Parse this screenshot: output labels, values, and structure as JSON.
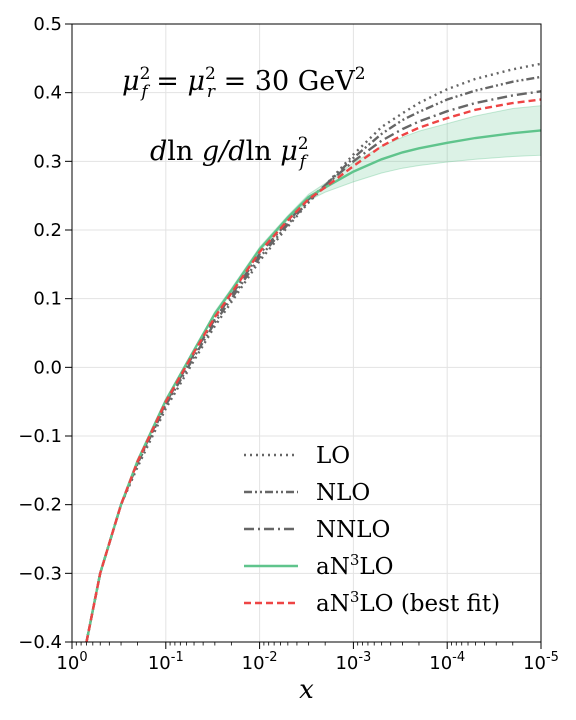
{
  "chart_data": {
    "type": "line",
    "xlabel": "x",
    "ylabel": "",
    "x_scale": "log",
    "x_reversed": true,
    "xlim": [
      1,
      1e-05
    ],
    "ylim": [
      -0.4,
      0.5
    ],
    "grid": true,
    "x_ticks": [
      {
        "value": 1,
        "base": "10",
        "exp": "0"
      },
      {
        "value": 0.1,
        "base": "10",
        "exp": "-1"
      },
      {
        "value": 0.01,
        "base": "10",
        "exp": "-2"
      },
      {
        "value": 0.001,
        "base": "10",
        "exp": "-3"
      },
      {
        "value": 0.0001,
        "base": "10",
        "exp": "-4"
      },
      {
        "value": 1e-05,
        "base": "10",
        "exp": "-5"
      }
    ],
    "y_ticks": [
      {
        "value": 0.5,
        "label": "0.5"
      },
      {
        "value": 0.4,
        "label": "0.4"
      },
      {
        "value": 0.3,
        "label": "0.3"
      },
      {
        "value": 0.2,
        "label": "0.2"
      },
      {
        "value": 0.1,
        "label": "0.1"
      },
      {
        "value": 0.0,
        "label": "0.0"
      },
      {
        "value": -0.1,
        "label": "−0.1"
      },
      {
        "value": -0.2,
        "label": "−0.2"
      },
      {
        "value": -0.3,
        "label": "−0.3"
      },
      {
        "value": -0.4,
        "label": "−0.4"
      }
    ],
    "annotations": [
      {
        "id": "scale",
        "parts": [
          {
            "t": "μ",
            "it": true
          },
          {
            "t": "2",
            "sup": true
          },
          {
            "t": "f",
            "sub": true,
            "it": true
          },
          {
            "t": " = "
          },
          {
            "t": "μ",
            "it": true
          },
          {
            "t": "2",
            "sup": true
          },
          {
            "t": "r",
            "sub": true,
            "it": true
          },
          {
            "t": " = 30 GeV"
          },
          {
            "t": "2",
            "sup": true
          }
        ]
      },
      {
        "id": "quantity",
        "parts": [
          {
            "t": "d",
            "it": true
          },
          {
            "t": "ln "
          },
          {
            "t": "g/d",
            "it": true
          },
          {
            "t": "ln "
          },
          {
            "t": "μ",
            "it": true
          },
          {
            "t": "2",
            "sup": true
          },
          {
            "t": "f",
            "sub": true,
            "it": true
          }
        ]
      }
    ],
    "legend": {
      "placement": "lower-right"
    },
    "series": [
      {
        "name": "LO",
        "color": "#666666",
        "dash": "dotted",
        "x": [
          0.7,
          0.5,
          0.3,
          0.2,
          0.1,
          0.05,
          0.03,
          0.02,
          0.01,
          0.005,
          0.003,
          0.002,
          0.001,
          0.0005,
          0.0003,
          0.0002,
          0.0001,
          5e-05,
          2e-05,
          1e-05
        ],
        "y": [
          -0.4,
          -0.3,
          -0.2,
          -0.145,
          -0.06,
          0.01,
          0.06,
          0.095,
          0.155,
          0.205,
          0.24,
          0.265,
          0.31,
          0.35,
          0.37,
          0.385,
          0.405,
          0.42,
          0.434,
          0.442
        ]
      },
      {
        "name": "NLO",
        "color": "#666666",
        "dash": "dashdotdot",
        "x": [
          0.7,
          0.5,
          0.3,
          0.2,
          0.1,
          0.05,
          0.03,
          0.02,
          0.01,
          0.005,
          0.003,
          0.002,
          0.001,
          0.0005,
          0.0003,
          0.0002,
          0.0001,
          5e-05,
          2e-05,
          1e-05
        ],
        "y": [
          -0.4,
          -0.3,
          -0.2,
          -0.14,
          -0.055,
          0.015,
          0.065,
          0.1,
          0.16,
          0.208,
          0.242,
          0.265,
          0.305,
          0.34,
          0.36,
          0.372,
          0.39,
          0.403,
          0.416,
          0.423
        ]
      },
      {
        "name": "NNLO",
        "color": "#666666",
        "dash": "dashdot",
        "x": [
          0.7,
          0.5,
          0.3,
          0.2,
          0.1,
          0.05,
          0.03,
          0.02,
          0.01,
          0.005,
          0.003,
          0.002,
          0.001,
          0.0005,
          0.0003,
          0.0002,
          0.0001,
          5e-05,
          2e-05,
          1e-05
        ],
        "y": [
          -0.4,
          -0.3,
          -0.2,
          -0.138,
          -0.052,
          0.02,
          0.07,
          0.105,
          0.165,
          0.212,
          0.245,
          0.265,
          0.3,
          0.33,
          0.347,
          0.358,
          0.373,
          0.385,
          0.396,
          0.402
        ]
      },
      {
        "name": "aN3LO",
        "color": "#5fc48c",
        "dash": "solid",
        "x": [
          0.7,
          0.5,
          0.3,
          0.2,
          0.1,
          0.05,
          0.03,
          0.02,
          0.01,
          0.005,
          0.003,
          0.002,
          0.001,
          0.0005,
          0.0003,
          0.0002,
          0.0001,
          5e-05,
          2e-05,
          1e-05
        ],
        "y": [
          -0.4,
          -0.3,
          -0.2,
          -0.136,
          -0.048,
          0.025,
          0.078,
          0.112,
          0.172,
          0.218,
          0.248,
          0.262,
          0.285,
          0.303,
          0.313,
          0.319,
          0.327,
          0.334,
          0.341,
          0.345
        ],
        "band_lower": [
          -0.4,
          -0.3,
          -0.2,
          -0.136,
          -0.048,
          0.025,
          0.075,
          0.109,
          0.169,
          0.215,
          0.243,
          0.255,
          0.27,
          0.283,
          0.29,
          0.294,
          0.299,
          0.303,
          0.307,
          0.309
        ],
        "band_upper": [
          -0.4,
          -0.3,
          -0.2,
          -0.136,
          -0.048,
          0.025,
          0.081,
          0.115,
          0.175,
          0.221,
          0.252,
          0.268,
          0.298,
          0.322,
          0.335,
          0.344,
          0.355,
          0.366,
          0.377,
          0.381
        ]
      },
      {
        "name": "aN3LO (best fit)",
        "color": "#ee4444",
        "dash": "dashed",
        "x": [
          0.7,
          0.5,
          0.3,
          0.2,
          0.1,
          0.05,
          0.03,
          0.02,
          0.01,
          0.005,
          0.003,
          0.002,
          0.001,
          0.0005,
          0.0003,
          0.0002,
          0.0001,
          5e-05,
          2e-05,
          1e-05
        ],
        "y": [
          -0.4,
          -0.3,
          -0.2,
          -0.137,
          -0.05,
          0.022,
          0.073,
          0.108,
          0.168,
          0.214,
          0.245,
          0.262,
          0.293,
          0.322,
          0.338,
          0.349,
          0.363,
          0.375,
          0.385,
          0.39
        ]
      }
    ]
  }
}
